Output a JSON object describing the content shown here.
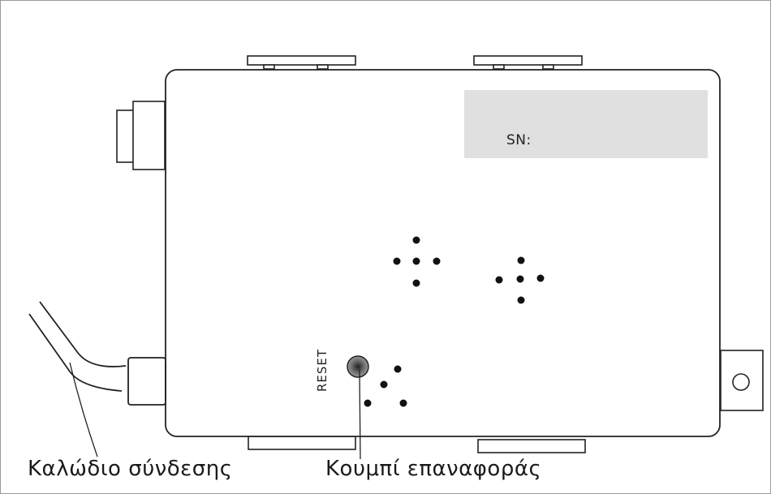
{
  "label_plate": {
    "serial_label": "SN:",
    "color": "#e0e0e0"
  },
  "reset": {
    "side_label": "RESET",
    "button_color": "#777777"
  },
  "captions": {
    "cable": "Καλώδιο σύνδεσης",
    "reset_button": "Κουμπί επαναφοράς"
  },
  "icons": {
    "vent_holes": [
      "vent-group-1",
      "vent-group-2",
      "vent-group-3"
    ],
    "ground_screw": "screw-icon",
    "cable": "cable-icon"
  }
}
